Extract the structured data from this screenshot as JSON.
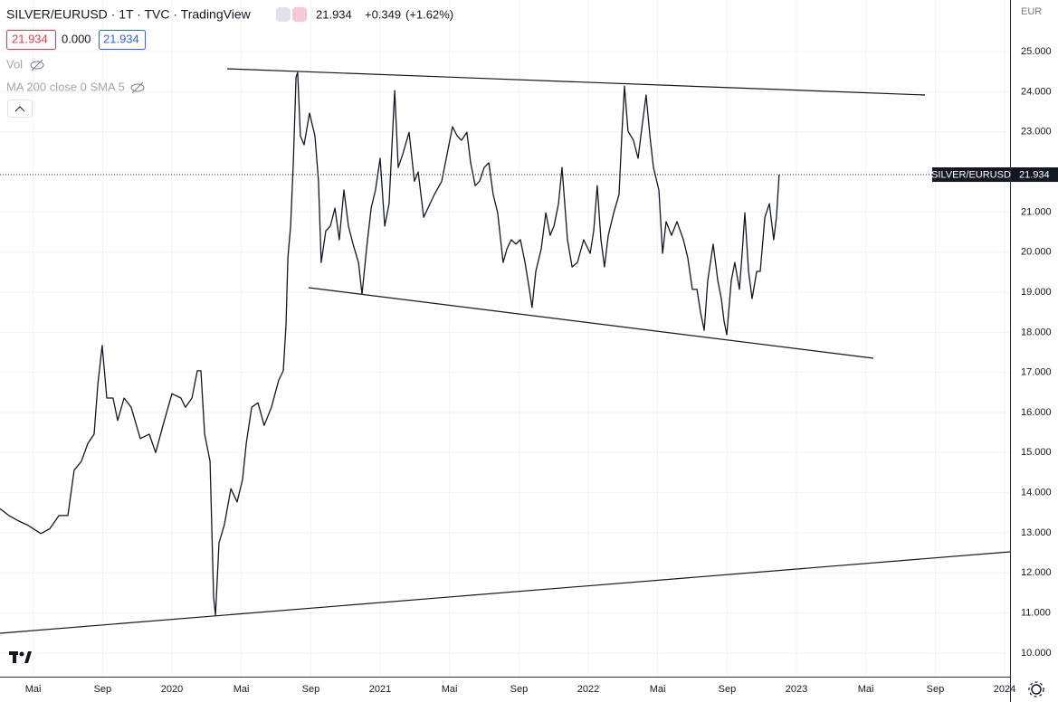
{
  "header": {
    "title": "SILVER/EURUSD · 1T · TVC · TradingView",
    "last": "21.934",
    "change": "+0.349",
    "change_pct": "(+1.62%)",
    "box_sell": "21.934",
    "box_spread": "0.000",
    "box_buy": "21.934",
    "vol": "Vol",
    "ma": "MA 200 close 0 SMA 5",
    "currency": "EUR"
  },
  "chart_data": {
    "type": "line",
    "x": [
      2019.174,
      2019.217,
      2019.261,
      2019.304,
      2019.37,
      2019.413,
      2019.457,
      2019.5,
      2019.53,
      2019.565,
      2019.596,
      2019.626,
      2019.644,
      2019.665,
      2019.687,
      2019.717,
      2019.739,
      2019.77,
      2019.804,
      2019.848,
      2019.891,
      2019.922,
      2019.957,
      2020.0,
      2020.043,
      2020.065,
      2020.096,
      2020.122,
      2020.139,
      2020.157,
      2020.183,
      2020.2,
      2020.209,
      2020.226,
      2020.252,
      2020.283,
      2020.313,
      2020.339,
      2020.357,
      2020.383,
      2020.413,
      2020.443,
      2020.478,
      2020.513,
      2020.535,
      2020.548,
      2020.557,
      2020.57,
      2020.583,
      2020.596,
      2020.604,
      2020.617,
      2020.635,
      2020.661,
      2020.687,
      2020.704,
      2020.717,
      2020.739,
      2020.761,
      2020.783,
      2020.804,
      2020.826,
      2020.848,
      2020.87,
      2020.896,
      2020.913,
      2020.935,
      2020.957,
      2020.978,
      2021.0,
      2021.022,
      2021.043,
      2021.07,
      2021.087,
      2021.109,
      2021.139,
      2021.165,
      2021.183,
      2021.209,
      2021.23,
      2021.261,
      2021.296,
      2021.326,
      2021.348,
      2021.37,
      2021.391,
      2021.417,
      2021.435,
      2021.457,
      2021.478,
      2021.5,
      2021.522,
      2021.543,
      2021.565,
      2021.591,
      2021.609,
      2021.63,
      2021.652,
      2021.674,
      2021.696,
      2021.717,
      2021.73,
      2021.748,
      2021.774,
      2021.796,
      2021.817,
      2021.835,
      2021.857,
      2021.874,
      2021.9,
      2021.922,
      2021.948,
      2021.978,
      2022.009,
      2022.026,
      2022.043,
      2022.061,
      2022.078,
      2022.096,
      2022.122,
      2022.148,
      2022.161,
      2022.174,
      2022.191,
      2022.217,
      2022.239,
      2022.261,
      2022.278,
      2022.296,
      2022.313,
      2022.339,
      2022.357,
      2022.374,
      2022.4,
      2022.426,
      2022.457,
      2022.478,
      2022.5,
      2022.522,
      2022.539,
      2022.557,
      2022.574,
      2022.6,
      2022.622,
      2022.639,
      2022.652,
      2022.665,
      2022.687,
      2022.704,
      2022.726,
      2022.739,
      2022.752,
      2022.77,
      2022.787,
      2022.809,
      2022.826,
      2022.848,
      2022.87,
      2022.891,
      2022.904,
      2022.917
    ],
    "series": [
      {
        "name": "SILVER/EURUSD",
        "color": "#131722",
        "values": [
          13.6,
          13.43,
          13.3,
          13.2,
          12.98,
          13.1,
          13.43,
          13.43,
          14.56,
          14.78,
          15.23,
          15.46,
          16.7,
          17.67,
          16.36,
          16.36,
          15.8,
          16.36,
          16.13,
          15.35,
          15.46,
          15.0,
          15.68,
          16.47,
          16.36,
          16.13,
          16.36,
          17.04,
          17.04,
          15.46,
          14.78,
          11.4,
          10.94,
          12.75,
          13.2,
          14.1,
          13.77,
          14.33,
          15.23,
          16.13,
          16.24,
          15.68,
          16.13,
          16.81,
          17.04,
          18.17,
          19.86,
          20.65,
          22.23,
          24.37,
          24.48,
          22.9,
          22.68,
          23.47,
          22.9,
          21.77,
          19.74,
          20.53,
          20.65,
          21.1,
          20.31,
          21.55,
          20.65,
          20.2,
          19.74,
          18.95,
          20.08,
          21.1,
          21.55,
          22.34,
          20.65,
          21.21,
          24.03,
          22.11,
          22.45,
          22.99,
          21.77,
          22.0,
          20.87,
          21.1,
          21.44,
          21.77,
          22.56,
          23.13,
          22.9,
          22.79,
          22.99,
          22.23,
          21.66,
          21.77,
          22.11,
          22.23,
          21.44,
          20.98,
          19.74,
          20.08,
          20.31,
          20.2,
          20.31,
          19.74,
          19.07,
          18.62,
          19.52,
          20.08,
          20.98,
          20.42,
          20.65,
          21.21,
          22.11,
          20.31,
          19.63,
          19.74,
          20.31,
          19.97,
          20.53,
          21.66,
          20.31,
          19.63,
          20.42,
          20.98,
          21.44,
          22.9,
          24.14,
          23.02,
          22.79,
          22.34,
          23.24,
          23.92,
          22.9,
          22.11,
          21.55,
          19.97,
          20.76,
          20.42,
          20.76,
          20.31,
          19.86,
          19.07,
          19.07,
          18.5,
          18.05,
          19.29,
          20.2,
          19.29,
          18.84,
          18.28,
          17.94,
          19.29,
          19.74,
          19.07,
          19.97,
          20.98,
          19.52,
          18.84,
          19.52,
          19.52,
          20.87,
          21.21,
          20.31,
          20.87,
          21.934
        ]
      }
    ],
    "xlim": [
      2019.174,
      2024.026
    ],
    "xticks": [
      {
        "value": 2019.333,
        "label": "Mai"
      },
      {
        "value": 2019.667,
        "label": "Sep"
      },
      2020,
      {
        "value": 2020.333,
        "label": "Mai"
      },
      {
        "value": 2020.667,
        "label": "Sep"
      },
      2021,
      {
        "value": 2021.333,
        "label": "Mai"
      },
      {
        "value": 2021.667,
        "label": "Sep"
      },
      2022,
      {
        "value": 2022.333,
        "label": "Mai"
      },
      {
        "value": 2022.667,
        "label": "Sep"
      },
      2023,
      {
        "value": 2023.333,
        "label": "Mai"
      },
      {
        "value": 2023.667,
        "label": "Sep"
      },
      2024
    ],
    "ylim": [
      9.41,
      26.29
    ],
    "yticks": [
      {
        "value": 10,
        "label": "10.000"
      },
      {
        "value": 11,
        "label": "11.000"
      },
      {
        "value": 12,
        "label": "12.000"
      },
      {
        "value": 13,
        "label": "13.000"
      },
      {
        "value": 14,
        "label": "14.000"
      },
      {
        "value": 15,
        "label": "15.000"
      },
      {
        "value": 16,
        "label": "16.000"
      },
      {
        "value": 17,
        "label": "17.000"
      },
      {
        "value": 18,
        "label": "18.000"
      },
      {
        "value": 19,
        "label": "19.000"
      },
      {
        "value": 20,
        "label": "20.000"
      },
      {
        "value": 21,
        "label": "21.000"
      },
      {
        "value": 22,
        "label": "22.000"
      },
      {
        "value": 23,
        "label": "23.000"
      },
      {
        "value": 24,
        "label": "24.000"
      },
      {
        "value": 25,
        "label": "25.000"
      }
    ],
    "grid": true
  }
}
